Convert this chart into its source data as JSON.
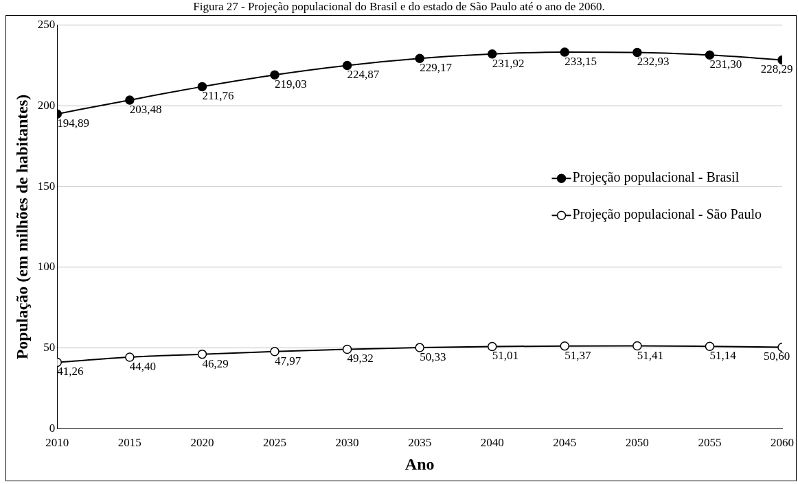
{
  "chart_data": {
    "type": "line",
    "title": "Figura 27 - Projeção populacional do Brasil e do estado de São Paulo até o ano de 2060.",
    "xlabel": "Ano",
    "ylabel": "População (em milhões de habitantes)",
    "x": [
      2010,
      2015,
      2020,
      2025,
      2030,
      2035,
      2040,
      2045,
      2050,
      2055,
      2060
    ],
    "series": [
      {
        "name": "Projeção populacional - Brasil",
        "color": "#000000",
        "values": [
          194.89,
          203.48,
          211.76,
          219.03,
          224.87,
          229.17,
          231.92,
          233.15,
          232.93,
          231.3,
          228.29
        ],
        "value_labels": [
          "194,89",
          "203,48",
          "211,76",
          "219,03",
          "224,87",
          "229,17",
          "231,92",
          "233,15",
          "232,93",
          "231,30",
          "228,29"
        ]
      },
      {
        "name": "Projeção populacional - São Paulo",
        "color": "#000000",
        "values": [
          41.26,
          44.4,
          46.29,
          47.97,
          49.32,
          50.33,
          51.01,
          51.37,
          51.41,
          51.14,
          50.6
        ],
        "value_labels": [
          "41,26",
          "44,40",
          "46,29",
          "47,97",
          "49,32",
          "50,33",
          "51,01",
          "51,37",
          "51,41",
          "51,14",
          "50,60"
        ]
      }
    ],
    "xlim": [
      2010,
      2060
    ],
    "xticks": [
      2010,
      2015,
      2020,
      2025,
      2030,
      2035,
      2040,
      2045,
      2050,
      2055,
      2060
    ],
    "ylim": [
      0,
      250
    ],
    "yticks": [
      0,
      50,
      100,
      150,
      200,
      250
    ],
    "grid": "y",
    "legend": "right",
    "marker": "circle"
  }
}
